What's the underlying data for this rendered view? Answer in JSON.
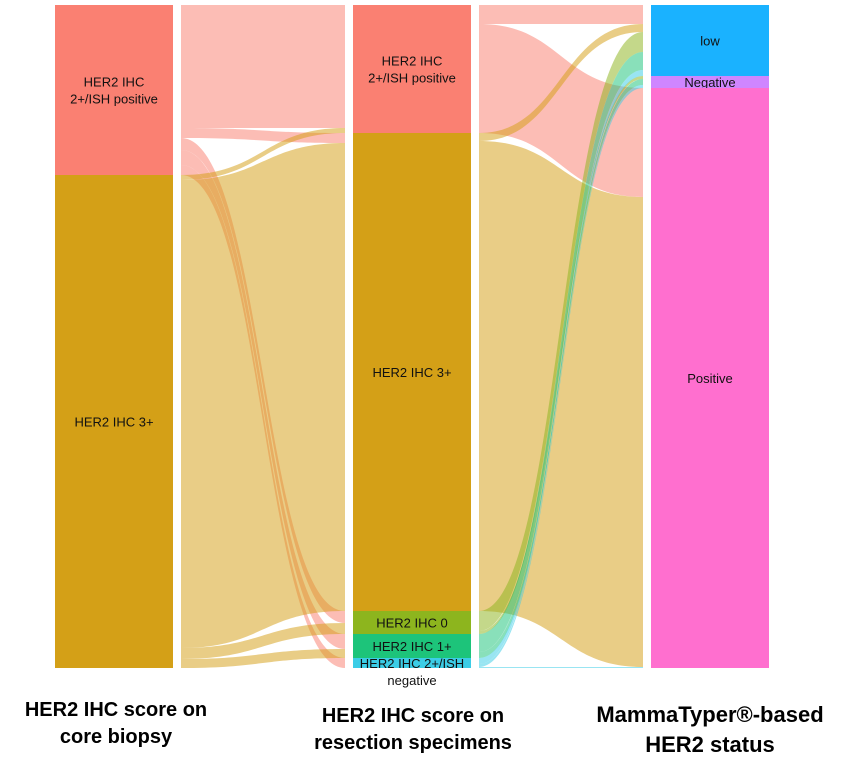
{
  "chart_data": {
    "type": "sankey",
    "columns": [
      {
        "label_line1": "HER2 IHC score on",
        "label_line2": "core biopsy"
      },
      {
        "label_line1": "HER2 IHC score on",
        "label_line2": "resection specimens"
      },
      {
        "label_line1": "MammaTyper®-based",
        "label_line2": "HER2 status"
      }
    ],
    "nodes": [
      {
        "id": "cb_2pos",
        "column": 0,
        "label": [
          "HER2 IHC",
          "2+/ISH positive"
        ],
        "color": "#FA8072",
        "value": 170
      },
      {
        "id": "cb_3",
        "column": 0,
        "label": [
          "HER2 IHC 3+"
        ],
        "color": "#D4A017",
        "value": 493
      },
      {
        "id": "rs_2pos",
        "column": 1,
        "label": [
          "HER2 IHC",
          "2+/ISH positive"
        ],
        "color": "#FA8072",
        "value": 128
      },
      {
        "id": "rs_3",
        "column": 1,
        "label": [
          "HER2 IHC 3+"
        ],
        "color": "#D4A017",
        "value": 478
      },
      {
        "id": "rs_0",
        "column": 1,
        "label": [
          "HER2 IHC 0"
        ],
        "color": "#8DB51E",
        "value": 23
      },
      {
        "id": "rs_1",
        "column": 1,
        "label": [
          "HER2 IHC 1+"
        ],
        "color": "#1DC47A",
        "value": 24
      },
      {
        "id": "rs_2neg",
        "column": 1,
        "label": [
          "HER2 IHC 2+/ISH",
          "negative"
        ],
        "color": "#3CCDE6",
        "value": 10
      },
      {
        "id": "mt_low",
        "column": 2,
        "label": [
          "low"
        ],
        "color": "#1AB2FF",
        "value": 71
      },
      {
        "id": "mt_neg",
        "column": 2,
        "label": [
          "Negative"
        ],
        "color": "#CF86FF",
        "value": 12
      },
      {
        "id": "mt_pos",
        "column": 2,
        "label": [
          "Positive"
        ],
        "color": "#FF6FCF",
        "value": 580
      }
    ],
    "links": [
      {
        "source": "cb_2pos",
        "target": "rs_2pos",
        "value": 123
      },
      {
        "source": "cb_2pos",
        "target": "rs_3",
        "value": 10
      },
      {
        "source": "cb_2pos",
        "target": "rs_0",
        "value": 12
      },
      {
        "source": "cb_2pos",
        "target": "rs_1",
        "value": 15
      },
      {
        "source": "cb_2pos",
        "target": "rs_2neg",
        "value": 10
      },
      {
        "source": "cb_3",
        "target": "rs_2pos",
        "value": 5
      },
      {
        "source": "cb_3",
        "target": "rs_3",
        "value": 468
      },
      {
        "source": "cb_3",
        "target": "rs_0",
        "value": 11
      },
      {
        "source": "cb_3",
        "target": "rs_1",
        "value": 9
      },
      {
        "source": "rs_2pos",
        "target": "mt_low",
        "value": 19
      },
      {
        "source": "rs_2pos",
        "target": "mt_pos",
        "value": 109
      },
      {
        "source": "rs_3",
        "target": "mt_low",
        "value": 8
      },
      {
        "source": "rs_3",
        "target": "mt_pos",
        "value": 470
      },
      {
        "source": "rs_0",
        "target": "mt_low",
        "value": 20
      },
      {
        "source": "rs_0",
        "target": "mt_neg",
        "value": 3
      },
      {
        "source": "rs_1",
        "target": "mt_low",
        "value": 18
      },
      {
        "source": "rs_1",
        "target": "mt_neg",
        "value": 6
      },
      {
        "source": "rs_2neg",
        "target": "mt_low",
        "value": 6
      },
      {
        "source": "rs_2neg",
        "target": "mt_neg",
        "value": 3
      },
      {
        "source": "rs_2neg",
        "target": "mt_pos",
        "value": 1
      }
    ]
  }
}
